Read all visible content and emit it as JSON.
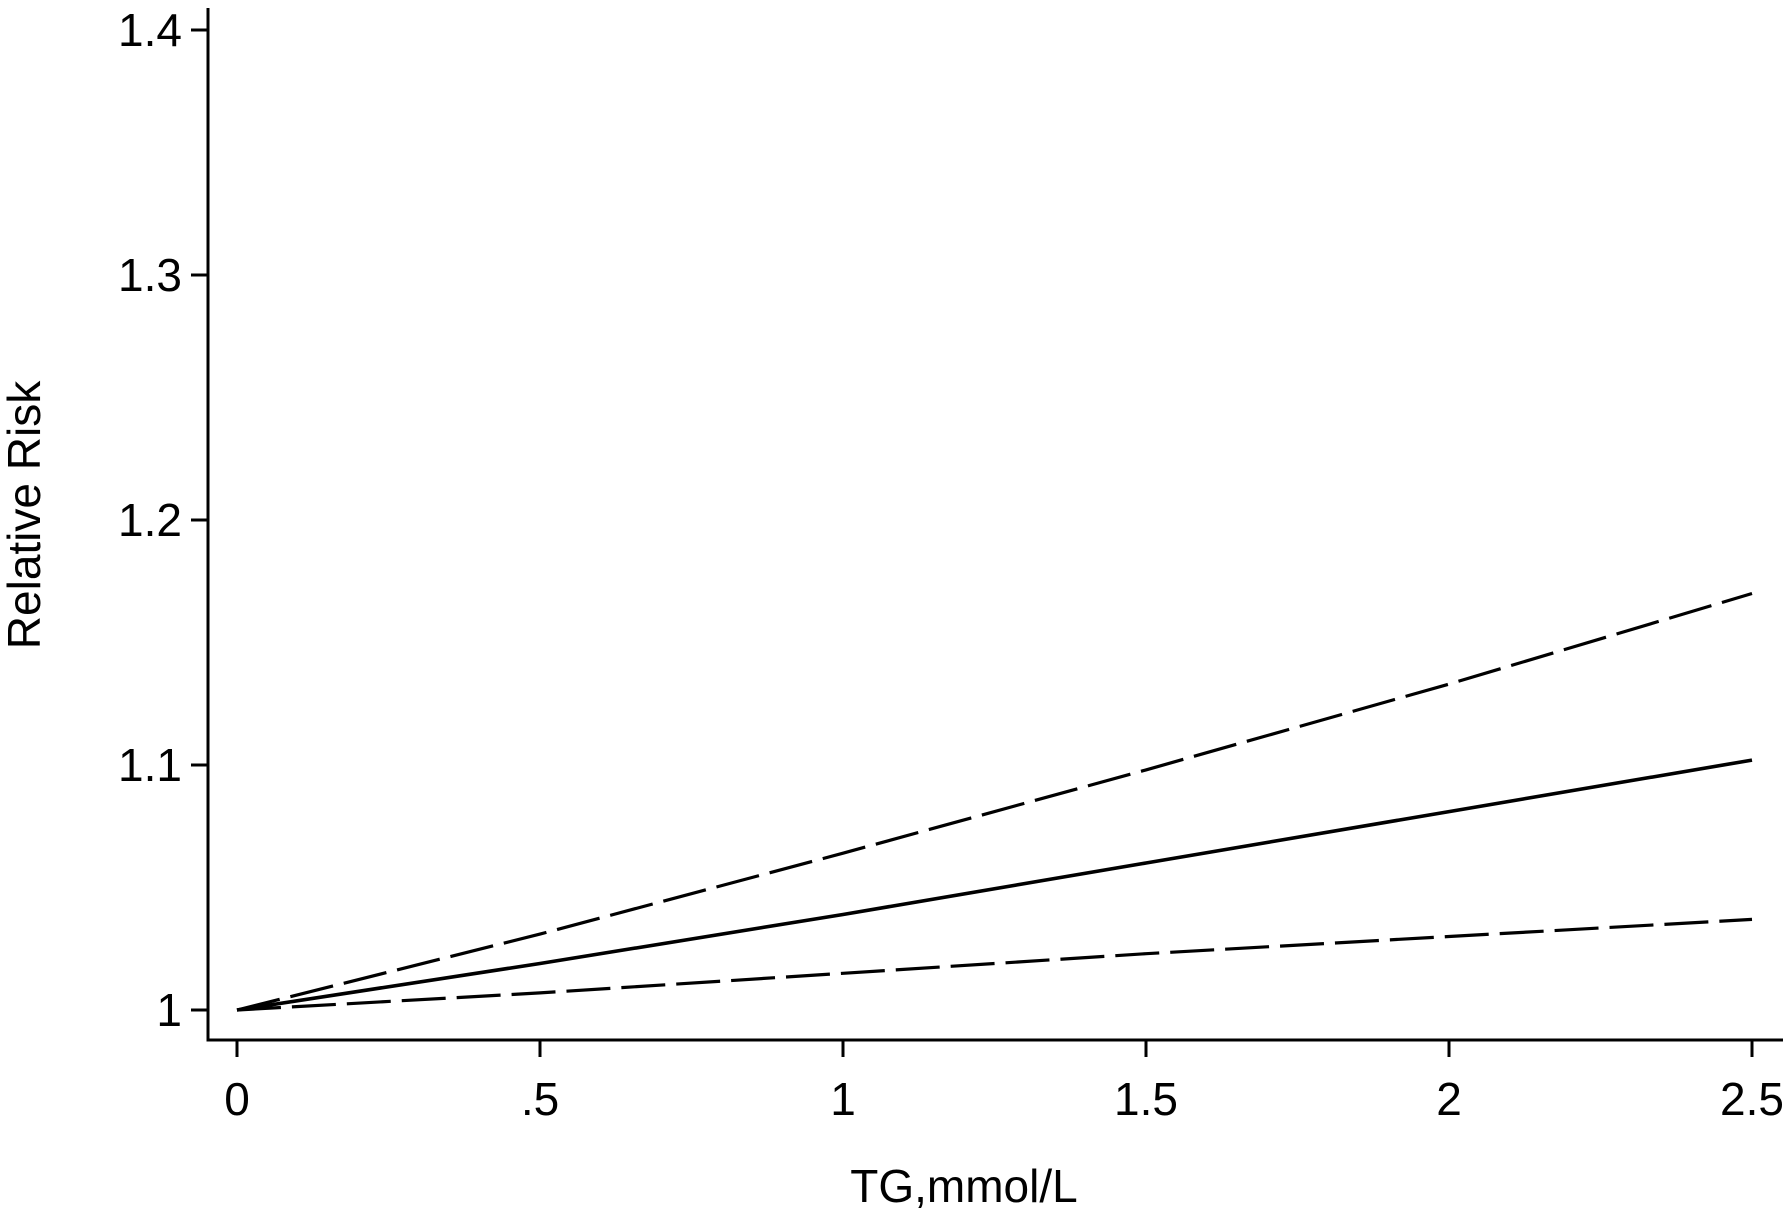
{
  "chart_data": {
    "type": "line",
    "title": "",
    "xlabel": "TG,mmol/L",
    "ylabel": "Relative Risk",
    "xlim": [
      0,
      2.5
    ],
    "ylim": [
      1,
      1.4
    ],
    "xticks": [
      {
        "value": 0,
        "label": "0"
      },
      {
        "value": 0.5,
        "label": ".5"
      },
      {
        "value": 1,
        "label": "1"
      },
      {
        "value": 1.5,
        "label": "1.5"
      },
      {
        "value": 2,
        "label": "2"
      },
      {
        "value": 2.5,
        "label": "2.5"
      }
    ],
    "yticks": [
      {
        "value": 1,
        "label": "1"
      },
      {
        "value": 1.1,
        "label": "1.1"
      },
      {
        "value": 1.2,
        "label": "1.2"
      },
      {
        "value": 1.3,
        "label": "1.3"
      },
      {
        "value": 1.4,
        "label": "1.4"
      }
    ],
    "grid": false,
    "legend": "none",
    "series": [
      {
        "style": "solid",
        "color": "#000000",
        "points": [
          [
            0,
            1.0
          ],
          [
            0.5,
            1.019
          ],
          [
            1,
            1.039
          ],
          [
            1.5,
            1.06
          ],
          [
            2,
            1.081
          ],
          [
            2.5,
            1.102
          ]
        ]
      },
      {
        "style": "dashed",
        "color": "#000000",
        "points": [
          [
            0,
            1.0
          ],
          [
            0.5,
            1.031
          ],
          [
            1,
            1.064
          ],
          [
            1.5,
            1.098
          ],
          [
            2,
            1.133
          ],
          [
            2.5,
            1.17
          ]
        ]
      },
      {
        "style": "dashed",
        "color": "#000000",
        "points": [
          [
            0,
            1.0
          ],
          [
            0.5,
            1.007
          ],
          [
            1,
            1.015
          ],
          [
            1.5,
            1.023
          ],
          [
            2,
            1.03
          ],
          [
            2.5,
            1.037
          ]
        ]
      }
    ]
  }
}
